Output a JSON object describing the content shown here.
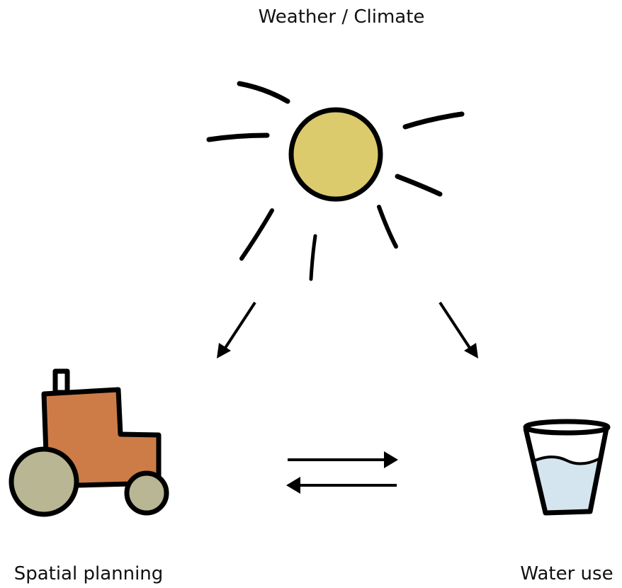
{
  "nodes": [
    {
      "label": "Weather / Climate"
    },
    {
      "label": "Spatial planning"
    },
    {
      "label": "Water use"
    }
  ]
}
